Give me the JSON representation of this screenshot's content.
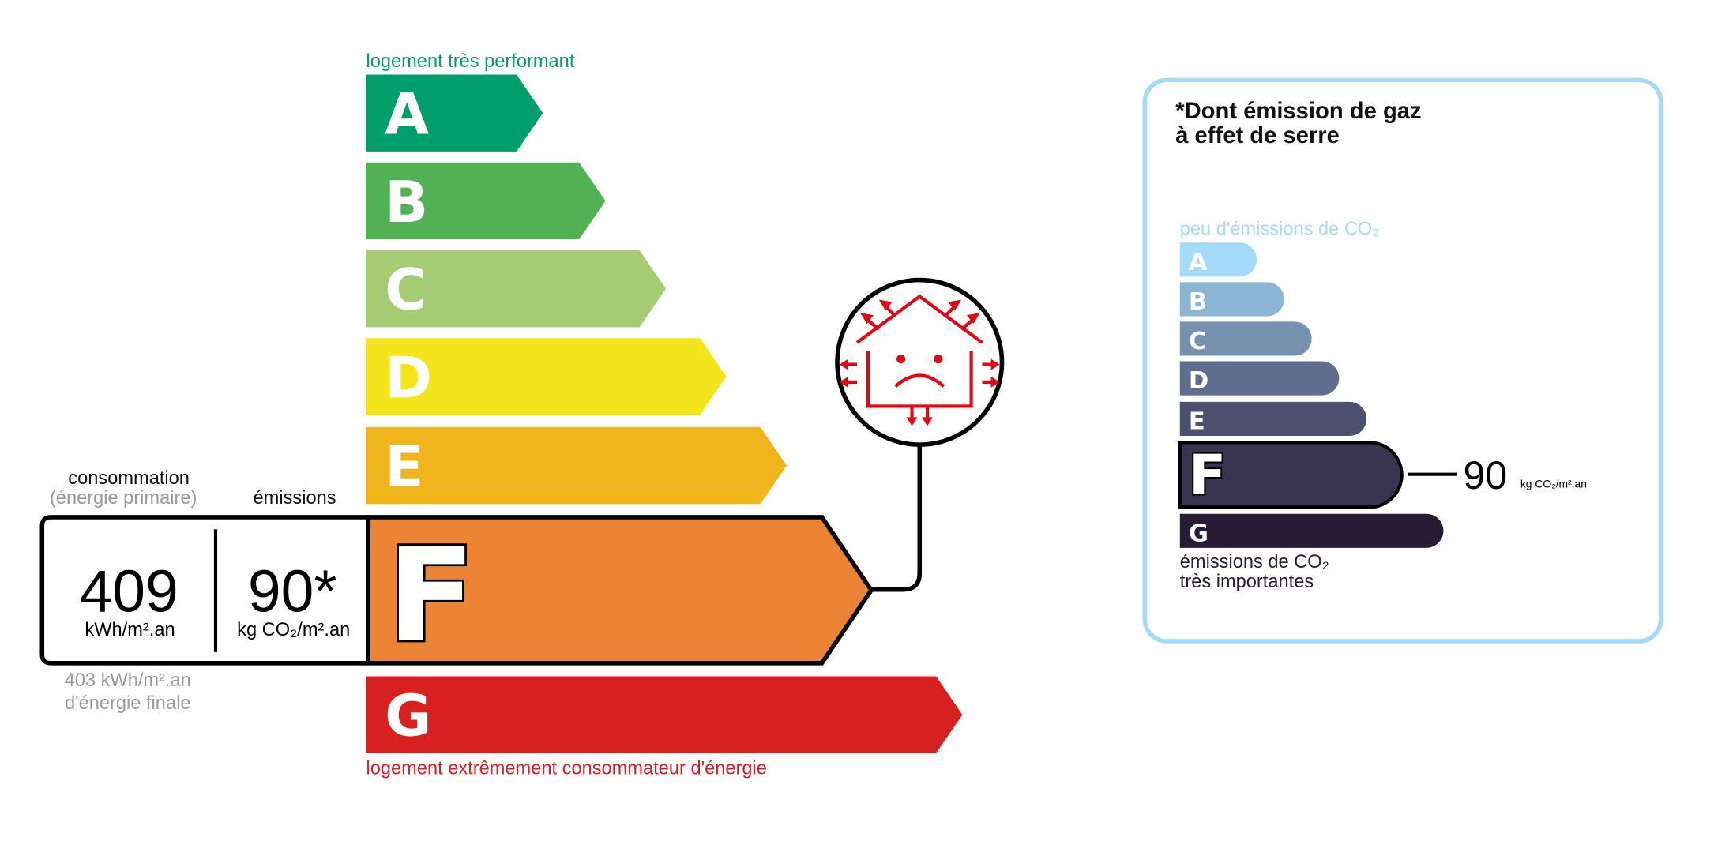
{
  "energy": {
    "top_label": "logement très performant",
    "bottom_label": "logement extrêmement consommateur d'énergie",
    "classes": [
      {
        "letter": "A",
        "color": "#009E6B"
      },
      {
        "letter": "B",
        "color": "#52B153"
      },
      {
        "letter": "C",
        "color": "#A5CC74"
      },
      {
        "letter": "D",
        "color": "#F2E51A"
      },
      {
        "letter": "E",
        "color": "#F0B41C"
      },
      {
        "letter": "F",
        "color": "#EC8435"
      },
      {
        "letter": "G",
        "color": "#D7201F"
      }
    ],
    "current_class": "F",
    "consumption_label": "consommation",
    "consumption_sublabel": "(énergie primaire)",
    "emissions_label": "émissions",
    "consumption_value": "409",
    "consumption_unit": "kWh/m².an",
    "emissions_value": "90*",
    "emissions_unit": "kg CO₂/m².an",
    "final_energy_line1": "403 kWh/m².an",
    "final_energy_line2": "d'énergie finale",
    "icon": "house-heat-loss-sad-icon"
  },
  "ges": {
    "title_line1": "*Dont émission de gaz",
    "title_line2": "à effet de serre",
    "top_label": "peu d'émissions de CO₂",
    "bottom_label_line1": "émissions de CO₂",
    "bottom_label_line2": "très importantes",
    "classes": [
      {
        "letter": "A",
        "color": "#A4DBF8"
      },
      {
        "letter": "B",
        "color": "#8CB4D3"
      },
      {
        "letter": "C",
        "color": "#7792B1"
      },
      {
        "letter": "D",
        "color": "#5F6E8F"
      },
      {
        "letter": "E",
        "color": "#4C506F"
      },
      {
        "letter": "F",
        "color": "#393551"
      },
      {
        "letter": "G",
        "color": "#281B35"
      }
    ],
    "current_class": "F",
    "value": "90",
    "unit": "kg CO₂/m².an",
    "border_color": "#A6DAF5"
  }
}
